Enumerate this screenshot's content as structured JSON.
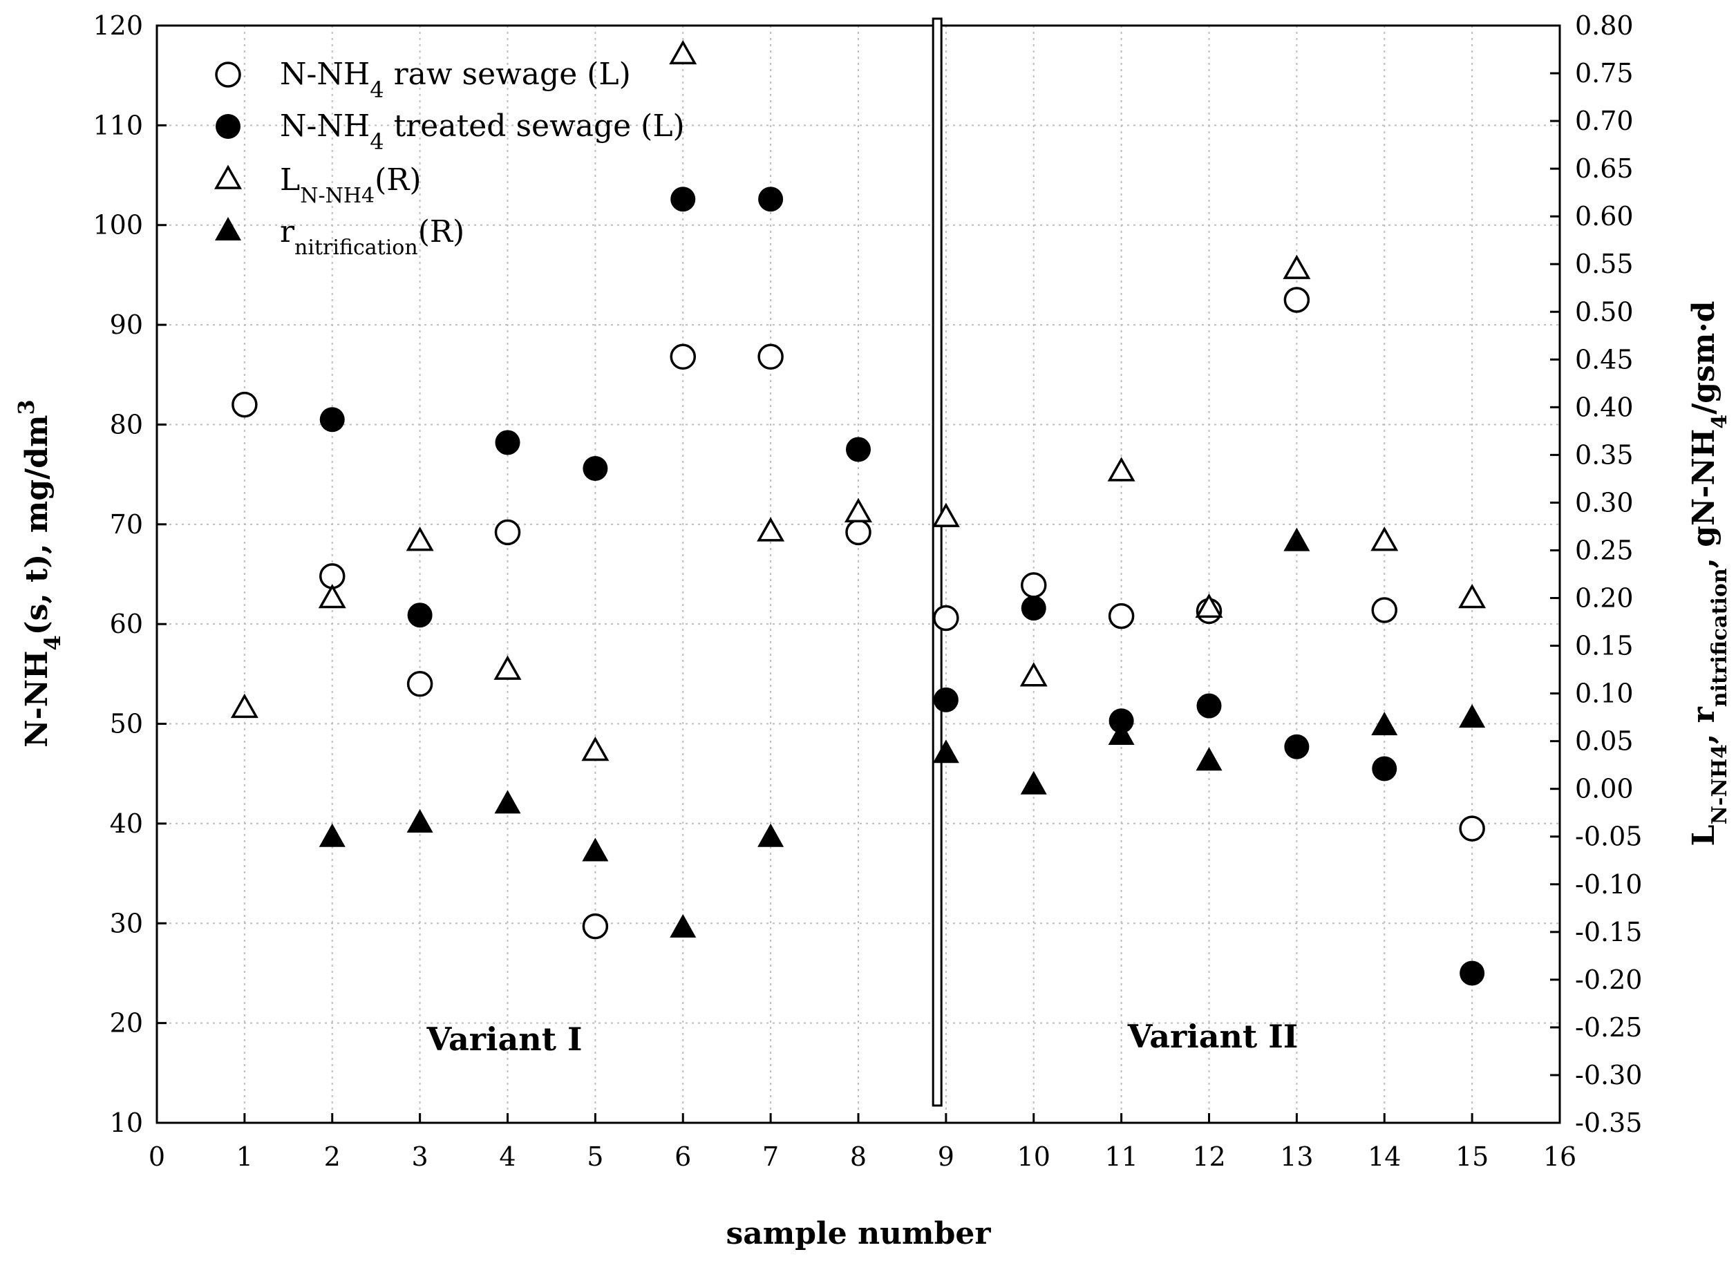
{
  "chart_data": {
    "type": "scatter",
    "xlabel": "sample number",
    "ylabel_left": {
      "main": "N-NH",
      "sub": "4",
      "rest": "(s, t), mg/dm",
      "sup": "3"
    },
    "ylabel_right": {
      "p1": "L",
      "s1": "N-NH4",
      "p2": ", r",
      "s2": "nitrification",
      "p3": ", gN-NH",
      "s3": "4",
      "p4": "/gsm·d"
    },
    "xlim": [
      0,
      16
    ],
    "ylim_left": [
      10,
      120
    ],
    "ylim_right": [
      -0.35,
      0.8
    ],
    "x_ticks": [
      "0",
      "1",
      "2",
      "3",
      "4",
      "5",
      "6",
      "7",
      "8",
      "9",
      "10",
      "11",
      "12",
      "13",
      "14",
      "15",
      "16"
    ],
    "y_left_ticks": [
      "10",
      "20",
      "30",
      "40",
      "50",
      "60",
      "70",
      "80",
      "90",
      "100",
      "110",
      "120"
    ],
    "y_right_ticks": [
      "-0.35",
      "-0.30",
      "-0.25",
      "-0.20",
      "-0.15",
      "-0.10",
      "-0.05",
      "0.00",
      "0.05",
      "0.10",
      "0.15",
      "0.20",
      "0.25",
      "0.30",
      "0.35",
      "0.40",
      "0.45",
      "0.50",
      "0.55",
      "0.60",
      "0.65",
      "0.70",
      "0.75",
      "0.80"
    ],
    "series": [
      {
        "name": "N-NH4 raw sewage (L)",
        "legend": {
          "main": "N-NH",
          "sub": "4",
          "rest": " raw sewage (L)"
        },
        "marker": "circle-open",
        "axis": "left",
        "x": [
          1,
          2,
          3,
          4,
          5,
          6,
          7,
          8,
          9,
          10,
          11,
          12,
          13,
          14,
          15
        ],
        "y": [
          82,
          64.8,
          54,
          69.2,
          29.7,
          86.8,
          86.8,
          69.2,
          60.6,
          63.9,
          60.8,
          61.3,
          92.5,
          61.4,
          39.5
        ]
      },
      {
        "name": "N-NH4 treated sewage (L)",
        "legend": {
          "main": "N-NH",
          "sub": "4",
          "rest": " treated sewage (L)"
        },
        "marker": "circle-filled",
        "axis": "left",
        "x": [
          2,
          3,
          4,
          5,
          6,
          7,
          8,
          9,
          10,
          11,
          12,
          13,
          14,
          15
        ],
        "y": [
          80.5,
          60.9,
          78.2,
          75.6,
          102.6,
          102.6,
          77.5,
          52.4,
          61.6,
          50.3,
          51.8,
          47.7,
          45.5,
          25
        ]
      },
      {
        "name": "LN-NH4(R)",
        "legend": {
          "main": "L",
          "sub": "N-NH4",
          "rest": "(R)"
        },
        "marker": "triangle-open",
        "axis": "right",
        "x": [
          1,
          2,
          3,
          4,
          5,
          6,
          7,
          8,
          9,
          10,
          11,
          12,
          13,
          14,
          15
        ],
        "y": [
          0.085,
          0.2,
          0.26,
          0.125,
          0.04,
          0.77,
          0.27,
          0.29,
          0.285,
          0.118,
          0.333,
          0.19,
          0.545,
          0.26,
          0.2
        ]
      },
      {
        "name": "rnitrification(R)",
        "legend": {
          "main": "r",
          "sub": "nitrification",
          "rest": "(R)"
        },
        "marker": "triangle-filled",
        "axis": "right",
        "x": [
          2,
          3,
          4,
          5,
          6,
          7,
          9,
          10,
          11,
          12,
          13,
          14,
          15
        ],
        "y": [
          -0.05,
          -0.035,
          -0.015,
          -0.065,
          -0.145,
          -0.05,
          0.038,
          0.005,
          0.057,
          0.03,
          0.26,
          0.067,
          0.075
        ]
      }
    ],
    "annotations": [
      "Variant I",
      "Variant II"
    ],
    "divider_x": 8.9
  }
}
